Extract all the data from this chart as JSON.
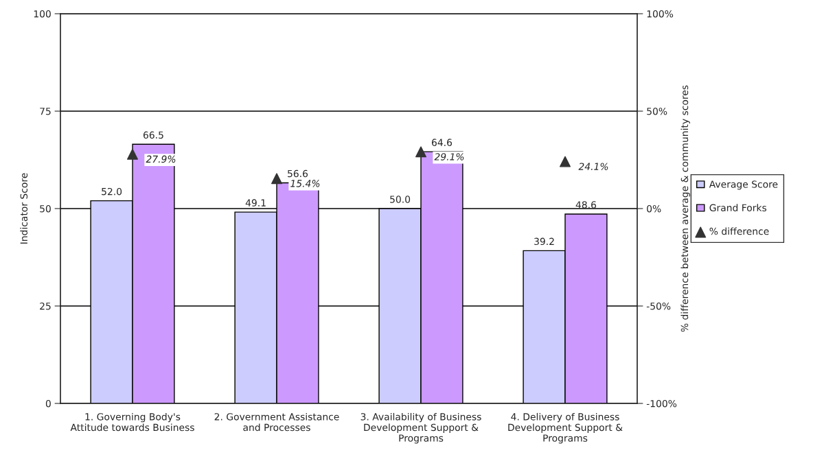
{
  "chart_data": {
    "type": "bar",
    "ylabel": "Indicator Score",
    "y2label": "% difference between average & community scores",
    "categories": [
      "1. Governing Body's\nAttitude towards Business",
      "2. Government Assistance\nand Processes",
      "3. Availability of Business\nDevelopment Support &\nPrograms",
      "4. Delivery of Business\nDevelopment Support &\nPrograms"
    ],
    "series": [
      {
        "name": "Average Score",
        "color": "#ccccff",
        "values": [
          52.0,
          49.1,
          50.0,
          39.2
        ],
        "value_labels": [
          "52.0",
          "49.1",
          "50.0",
          "39.2"
        ]
      },
      {
        "name": "Grand Forks",
        "color": "#cc99ff",
        "values": [
          66.5,
          56.6,
          64.6,
          48.6
        ],
        "value_labels": [
          "66.5",
          "56.6",
          "64.6",
          "48.6"
        ]
      },
      {
        "name": "% difference",
        "type": "scatter",
        "axis": "y2",
        "marker": "triangle",
        "color": "#333333",
        "values": [
          27.9,
          15.4,
          29.1,
          24.1
        ],
        "value_labels": [
          "27.9%",
          "15.4%",
          "29.1%",
          "24.1%"
        ]
      }
    ],
    "ylim": [
      0,
      100
    ],
    "yticks": [
      0,
      25,
      50,
      75,
      100
    ],
    "y2lim": [
      -100,
      100
    ],
    "y2ticks": [
      {
        "value": -100,
        "label": "-100%"
      },
      {
        "value": -50,
        "label": "-50%"
      },
      {
        "value": 0,
        "label": "0%"
      },
      {
        "value": 50,
        "label": "50%"
      },
      {
        "value": 100,
        "label": "100%"
      }
    ],
    "grid": "y",
    "legend": "right"
  }
}
